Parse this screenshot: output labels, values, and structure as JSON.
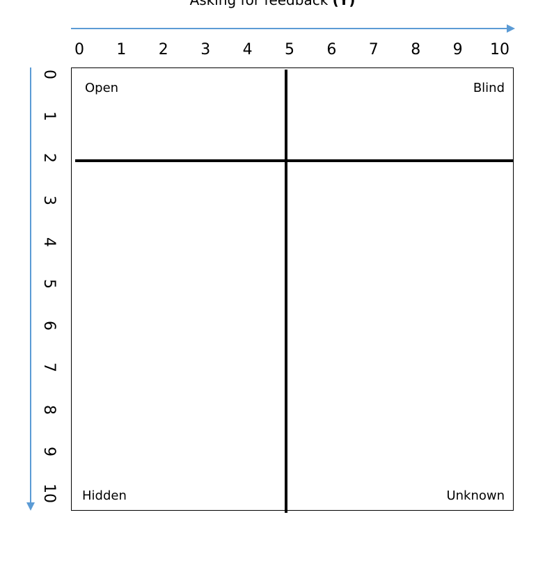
{
  "title": {
    "text": "Asking for feedback",
    "variable": "(Y)"
  },
  "x_axis": {
    "ticks": [
      "0",
      "1",
      "2",
      "3",
      "4",
      "5",
      "6",
      "7",
      "8",
      "9",
      "10"
    ],
    "arrow_color": "#5b9bd5"
  },
  "y_axis": {
    "ticks": [
      "0",
      "1",
      "2",
      "3",
      "4",
      "5",
      "6",
      "7",
      "8",
      "9",
      "10"
    ],
    "arrow_color": "#5b9bd5"
  },
  "quadrants": {
    "open": "Open",
    "blind": "Blind",
    "hidden": "Hidden",
    "unknown": "Unknown"
  },
  "dividers": {
    "vertical_at_x": 5,
    "horizontal_at_y": 2
  }
}
